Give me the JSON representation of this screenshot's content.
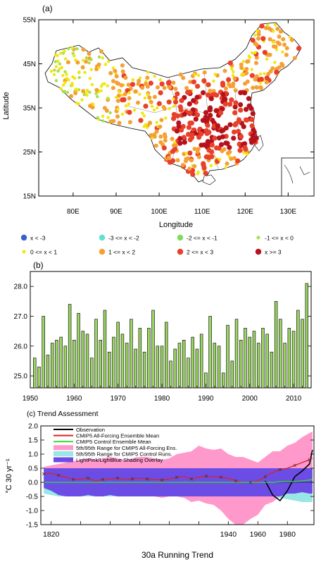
{
  "panel_a": {
    "label": "(a)",
    "xlabel": "Longitude",
    "ylabel": "Latitude",
    "x_ticks": [
      "80E",
      "90E",
      "100E",
      "110E",
      "120E",
      "130E"
    ],
    "y_ticks": [
      "55N",
      "45N",
      "35N",
      "25N",
      "15N"
    ],
    "legend": [
      {
        "label": "x < -3",
        "color": "#3a5fcd"
      },
      {
        "label": "-3 <= x < -2",
        "color": "#5fe0d0"
      },
      {
        "label": "-2 <= x < -1",
        "color": "#7ddc5a"
      },
      {
        "label": "-1 <= x < 0",
        "color": "#a6e04a"
      },
      {
        "label": "0 <= x < 1",
        "color": "#f2e60c"
      },
      {
        "label": "1 <= x < 2",
        "color": "#f5a033"
      },
      {
        "label": "2 <= x < 3",
        "color": "#e8402a"
      },
      {
        "label": "x >= 3",
        "color": "#b5121b"
      }
    ]
  },
  "chart_data": [
    {
      "type": "bar",
      "title": "(b)",
      "categories": [
        1951,
        1952,
        1953,
        1954,
        1955,
        1956,
        1957,
        1958,
        1959,
        1960,
        1961,
        1962,
        1963,
        1964,
        1965,
        1966,
        1967,
        1968,
        1969,
        1970,
        1971,
        1972,
        1973,
        1974,
        1975,
        1976,
        1977,
        1978,
        1979,
        1980,
        1981,
        1982,
        1983,
        1984,
        1985,
        1986,
        1987,
        1988,
        1989,
        1990,
        1991,
        1992,
        1993,
        1994,
        1995,
        1996,
        1997,
        1998,
        1999,
        2000,
        2001,
        2002,
        2003,
        2004,
        2005,
        2006,
        2007,
        2008,
        2009,
        2010,
        2011,
        2012,
        2013
      ],
      "values": [
        25.6,
        25.3,
        27.0,
        25.7,
        26.1,
        26.2,
        26.3,
        26.0,
        27.4,
        26.2,
        27.1,
        26.5,
        26.4,
        25.6,
        26.9,
        26.2,
        27.2,
        25.8,
        26.3,
        26.8,
        26.4,
        26.1,
        26.9,
        25.9,
        26.6,
        25.8,
        26.6,
        27.2,
        26.0,
        26.0,
        26.8,
        25.5,
        25.9,
        26.1,
        26.2,
        25.6,
        26.3,
        25.9,
        26.4,
        25.1,
        27.0,
        26.1,
        26.0,
        25.1,
        26.7,
        25.5,
        26.9,
        26.2,
        26.6,
        26.3,
        26.5,
        26.1,
        26.6,
        26.4,
        25.8,
        27.5,
        26.9,
        26.1,
        26.6,
        26.5,
        27.2,
        26.9,
        28.1
      ],
      "bar_color": "#9ad461",
      "xlim": [
        1950,
        2014
      ],
      "ylim": [
        24.6,
        28.5
      ],
      "x_ticks": [
        1950,
        1960,
        1970,
        1980,
        1990,
        2000,
        2010
      ],
      "y_ticks": [
        25.0,
        26.0,
        27.0,
        28.0
      ],
      "y_tick_labels": [
        "25.0",
        "26.0",
        "27.0",
        "28.0"
      ]
    },
    {
      "type": "line",
      "title": "(c) Trend Assessment",
      "xlabel": "30a Running Trend",
      "ylabel": "°C 30 yr⁻¹",
      "xlim": [
        1813,
        1998
      ],
      "ylim": [
        -1.5,
        2.0
      ],
      "x_ticks": [
        1820,
        1840,
        1860,
        1880,
        1900,
        1920,
        1940,
        1960,
        1980
      ],
      "x_tick_labels_shown": [
        "1820",
        "1940",
        "1960",
        "1980"
      ],
      "y_ticks": [
        -1.5,
        -1.0,
        -0.5,
        0.0,
        0.5,
        1.0,
        1.5,
        2.0
      ],
      "y_tick_labels": [
        "-1.5",
        "-1.0",
        "-0.5",
        "0.0",
        "0.5",
        "1.0",
        "1.5",
        "2.0"
      ],
      "legend": [
        {
          "label": "Observation",
          "color": "#000000",
          "kind": "line"
        },
        {
          "label": "CMIP5 All-Forcing Ensemble Mean",
          "color": "#e02020",
          "kind": "line"
        },
        {
          "label": "CMIP5 Control Ensemble Mean",
          "color": "#33dd33",
          "kind": "line"
        },
        {
          "label": "5th/95th Range for CMIP5 All-Forcing Ens.",
          "color": "#ff99cc",
          "kind": "box"
        },
        {
          "label": "5th/95th Range for CMIP5 Control Runs.",
          "color": "#99e6e6",
          "kind": "box"
        },
        {
          "label": "LightPink/LightBlue Shading Overlay",
          "color": "#6b4de6",
          "kind": "box"
        }
      ],
      "x": [
        1815,
        1820,
        1825,
        1830,
        1835,
        1840,
        1845,
        1850,
        1855,
        1860,
        1865,
        1870,
        1875,
        1880,
        1885,
        1890,
        1895,
        1900,
        1905,
        1910,
        1915,
        1920,
        1925,
        1930,
        1935,
        1940,
        1945,
        1950,
        1955,
        1960,
        1965,
        1970,
        1975,
        1980,
        1985,
        1990,
        1995,
        1997
      ],
      "series": [
        {
          "name": "Observation",
          "color": "#000000",
          "values": [
            null,
            null,
            null,
            null,
            null,
            null,
            null,
            null,
            null,
            null,
            null,
            null,
            null,
            null,
            null,
            null,
            null,
            null,
            null,
            null,
            null,
            null,
            null,
            null,
            null,
            null,
            null,
            null,
            null,
            null,
            0.05,
            -0.45,
            -0.65,
            -0.3,
            0.2,
            0.4,
            0.65,
            1.15
          ]
        },
        {
          "name": "CMIP5 All-Forcing Ensemble Mean",
          "color": "#e02020",
          "values": [
            0.3,
            0.32,
            0.25,
            0.18,
            0.1,
            0.12,
            0.15,
            0.05,
            0.1,
            0.12,
            0.15,
            0.1,
            0.12,
            0.15,
            0.12,
            0.1,
            0.08,
            0.12,
            0.18,
            0.2,
            0.12,
            0.18,
            0.22,
            0.2,
            0.18,
            0.15,
            0.05,
            0.0,
            0.0,
            0.05,
            0.2,
            0.35,
            0.45,
            0.5,
            0.6,
            0.7,
            0.8,
            0.85
          ]
        },
        {
          "name": "CMIP5 Control Ensemble Mean",
          "color": "#33dd33",
          "values": [
            0.0,
            0.0,
            0.0,
            0.0,
            0.0,
            0.0,
            0.0,
            0.0,
            0.0,
            0.0,
            0.0,
            0.0,
            0.0,
            0.0,
            0.0,
            0.0,
            0.0,
            0.0,
            0.0,
            0.0,
            0.0,
            0.0,
            0.0,
            0.0,
            0.0,
            0.0,
            0.0,
            0.0,
            0.0,
            0.0,
            0.0,
            0.0,
            0.02,
            0.03,
            0.03,
            0.05,
            0.08,
            0.1
          ]
        }
      ],
      "bands": [
        {
          "name": "5th/95th Range for CMIP5 All-Forcing Ens.",
          "color": "#ff99cc",
          "lower": [
            -0.2,
            -0.3,
            -0.45,
            -0.5,
            -0.5,
            -0.5,
            -0.45,
            -0.5,
            -0.5,
            -0.45,
            -0.5,
            -0.5,
            -0.5,
            -0.5,
            -0.5,
            -0.5,
            -0.55,
            -0.5,
            -0.5,
            -0.55,
            -0.7,
            -0.65,
            -0.75,
            -0.8,
            -1.0,
            -1.3,
            -1.5,
            -1.5,
            -1.3,
            -1.15,
            -0.8,
            -0.7,
            -0.5,
            -0.4,
            -0.4,
            -0.35,
            -0.4,
            -0.4
          ],
          "upper": [
            0.55,
            0.6,
            0.65,
            0.7,
            0.75,
            0.8,
            0.85,
            0.8,
            0.85,
            0.9,
            0.85,
            0.8,
            0.85,
            0.9,
            0.9,
            0.85,
            0.8,
            0.85,
            1.0,
            1.05,
            1.1,
            1.3,
            1.2,
            1.15,
            1.2,
            1.0,
            0.9,
            0.9,
            0.8,
            0.7,
            0.9,
            1.1,
            1.1,
            1.3,
            1.4,
            1.6,
            1.75,
            1.8
          ]
        },
        {
          "name": "5th/95th Range for CMIP5 Control Runs.",
          "color": "#99e6e6",
          "lower": [
            -0.4,
            -0.45,
            -0.5,
            -0.5,
            -0.5,
            -0.5,
            -0.5,
            -0.5,
            -0.5,
            -0.5,
            -0.5,
            -0.5,
            -0.5,
            -0.5,
            -0.5,
            -0.5,
            -0.5,
            -0.5,
            -0.5,
            -0.5,
            -0.5,
            -0.5,
            -0.5,
            -0.5,
            -0.5,
            -0.5,
            -0.5,
            -0.5,
            -0.5,
            -0.5,
            -0.5,
            -0.5,
            -0.55,
            -0.6,
            -0.65,
            -0.7,
            -0.7,
            -0.7
          ],
          "upper": [
            0.5,
            0.5,
            0.5,
            0.5,
            0.5,
            0.5,
            0.5,
            0.5,
            0.5,
            0.5,
            0.5,
            0.5,
            0.5,
            0.5,
            0.5,
            0.5,
            0.5,
            0.5,
            0.5,
            0.5,
            0.5,
            0.5,
            0.5,
            0.5,
            0.5,
            0.5,
            0.5,
            0.5,
            0.5,
            0.5,
            0.5,
            0.5,
            0.5,
            0.5,
            0.5,
            0.5,
            0.5,
            0.5
          ]
        },
        {
          "name": "LightPink/LightBlue Shading Overlay",
          "color": "#6b4de6",
          "lower": [
            -0.2,
            -0.3,
            -0.45,
            -0.5,
            -0.5,
            -0.5,
            -0.45,
            -0.5,
            -0.5,
            -0.45,
            -0.5,
            -0.5,
            -0.5,
            -0.5,
            -0.5,
            -0.5,
            -0.5,
            -0.5,
            -0.5,
            -0.5,
            -0.5,
            -0.5,
            -0.5,
            -0.5,
            -0.5,
            -0.5,
            -0.5,
            -0.5,
            -0.5,
            -0.5,
            -0.5,
            -0.5,
            -0.5,
            -0.4,
            -0.4,
            -0.35,
            -0.4,
            -0.4
          ],
          "upper": [
            0.5,
            0.5,
            0.5,
            0.5,
            0.5,
            0.5,
            0.5,
            0.5,
            0.5,
            0.5,
            0.5,
            0.5,
            0.5,
            0.5,
            0.5,
            0.5,
            0.5,
            0.5,
            0.5,
            0.5,
            0.5,
            0.5,
            0.5,
            0.5,
            0.5,
            0.5,
            0.5,
            0.5,
            0.5,
            0.5,
            0.5,
            0.5,
            0.5,
            0.5,
            0.5,
            0.5,
            0.5,
            0.5
          ]
        }
      ]
    }
  ]
}
